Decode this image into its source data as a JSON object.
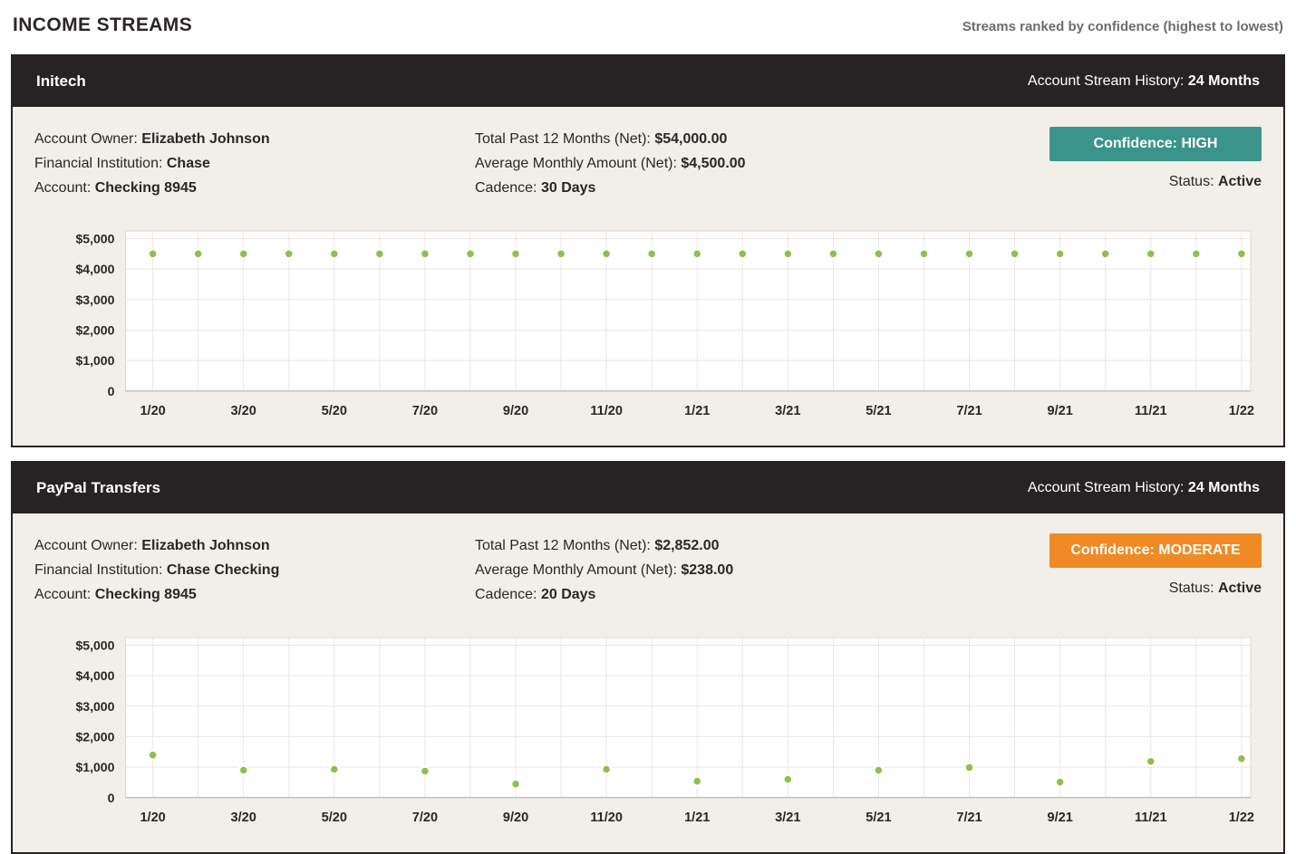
{
  "page": {
    "title": "INCOME STREAMS",
    "subtitle": "Streams ranked by confidence (highest to lowest)"
  },
  "colors": {
    "header_bg": "#272223",
    "card_bg": "#f2efea",
    "card_border": "#272223",
    "plot_bg": "#ffffff",
    "plot_border": "#dcd8d2",
    "grid": "#eae7e2",
    "axis_line": "#b3afa8",
    "dot": "#8ec04e",
    "confidence_high": "#3b948b",
    "confidence_moderate": "#ee8b25",
    "text": "#2b2627",
    "muted": "#6e6b6b"
  },
  "streams": [
    {
      "name": "Initech",
      "history_label": "Account Stream History:",
      "history_value": "24 Months",
      "account_fields": [
        {
          "label": "Account Owner:",
          "value": "Elizabeth Johnson"
        },
        {
          "label": "Financial Institution:",
          "value": "Chase"
        },
        {
          "label": "Account:",
          "value": "Checking 8945"
        }
      ],
      "summary_fields": [
        {
          "label": "Total Past 12 Months (Net):",
          "value": "$54,000.00"
        },
        {
          "label": "Average Monthly Amount (Net):",
          "value": "$4,500.00"
        },
        {
          "label": "Cadence:",
          "value": "30 Days"
        }
      ],
      "confidence_text": "Confidence: HIGH",
      "confidence_color": "#3b948b",
      "status_label": "Status:",
      "status_value": "Active",
      "chart_index": 0
    },
    {
      "name": "PayPal Transfers",
      "history_label": "Account Stream History:",
      "history_value": "24 Months",
      "account_fields": [
        {
          "label": "Account Owner:",
          "value": "Elizabeth Johnson"
        },
        {
          "label": "Financial Institution:",
          "value": "Chase Checking"
        },
        {
          "label": "Account:",
          "value": "Checking 8945"
        }
      ],
      "summary_fields": [
        {
          "label": "Total Past 12 Months (Net):",
          "value": "$2,852.00"
        },
        {
          "label": "Average Monthly Amount (Net):",
          "value": "$238.00"
        },
        {
          "label": "Cadence:",
          "value": "20 Days"
        }
      ],
      "confidence_text": "Confidence: MODERATE",
      "confidence_color": "#ee8b25",
      "status_label": "Status:",
      "status_value": "Active",
      "chart_index": 1
    }
  ],
  "chart_data": [
    {
      "type": "scatter",
      "x": [
        "1/20",
        "2/20",
        "3/20",
        "4/20",
        "5/20",
        "6/20",
        "7/20",
        "8/20",
        "9/20",
        "10/20",
        "11/20",
        "12/20",
        "1/21",
        "2/21",
        "3/21",
        "4/21",
        "5/21",
        "6/21",
        "7/21",
        "8/21",
        "9/21",
        "10/21",
        "11/21",
        "12/21",
        "1/22"
      ],
      "values": [
        4500,
        4500,
        4500,
        4500,
        4500,
        4500,
        4500,
        4500,
        4500,
        4500,
        4500,
        4500,
        4500,
        4500,
        4500,
        4500,
        4500,
        4500,
        4500,
        4500,
        4500,
        4500,
        4500,
        4500,
        4500
      ],
      "x_tick_labels": [
        "1/20",
        "3/20",
        "5/20",
        "7/20",
        "9/20",
        "11/20",
        "1/21",
        "3/21",
        "5/21",
        "7/21",
        "9/21",
        "11/21",
        "1/22"
      ],
      "y_tick_labels": [
        "$5,000",
        "$4,000",
        "$3,000",
        "$2,000",
        "$1,000",
        "0"
      ],
      "y_tick_values": [
        5000,
        4000,
        3000,
        2000,
        1000,
        0
      ],
      "ylim": [
        0,
        5250
      ],
      "x_slots": 25,
      "grid": true
    },
    {
      "type": "scatter",
      "x": [
        "1/20",
        "3/20",
        "5/20",
        "7/20",
        "9/20",
        "11/20",
        "1/21",
        "3/21",
        "5/21",
        "7/21",
        "9/21",
        "11/21",
        "1/22"
      ],
      "values": [
        1400,
        900,
        930,
        870,
        450,
        930,
        540,
        600,
        900,
        990,
        510,
        1190,
        1280
      ],
      "x_tick_labels": [
        "1/20",
        "3/20",
        "5/20",
        "7/20",
        "9/20",
        "11/20",
        "1/21",
        "3/21",
        "5/21",
        "7/21",
        "9/21",
        "11/21",
        "1/22"
      ],
      "y_tick_labels": [
        "$5,000",
        "$4,000",
        "$3,000",
        "$2,000",
        "$1,000",
        "0"
      ],
      "y_tick_values": [
        5000,
        4000,
        3000,
        2000,
        1000,
        0
      ],
      "ylim": [
        0,
        5250
      ],
      "x_slots": 25,
      "grid": true
    }
  ]
}
